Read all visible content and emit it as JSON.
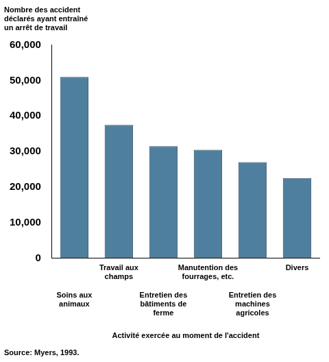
{
  "chart_data": {
    "type": "bar",
    "y_label": "Nombre des accident déclarés ayant entraîné un arrêt de travail",
    "x_label": "Activité exercée au moment de l'accident",
    "source": "Source: Myers, 1993.",
    "categories": [
      "Soins aux animaux",
      "Travail aux champs",
      "Entretien des bâtiments de ferme",
      "Manutention des fourrages, etc.",
      "Entretien des machines agricoles",
      "Divers"
    ],
    "values": [
      51000,
      37500,
      31500,
      30500,
      27000,
      22500
    ],
    "color": "#4e7f9e",
    "ylim": [
      0,
      60000
    ],
    "yticks": [
      0,
      {
        "value": 10000,
        "label": "10,000"
      },
      {
        "value": 20000,
        "label": "20,000"
      },
      {
        "value": 30000,
        "label": "30,000"
      },
      {
        "value": 40000,
        "label": "40,000"
      },
      {
        "value": 50000,
        "label": "50,000"
      },
      {
        "value": 60000,
        "label": "60,000"
      }
    ],
    "grid": false
  }
}
